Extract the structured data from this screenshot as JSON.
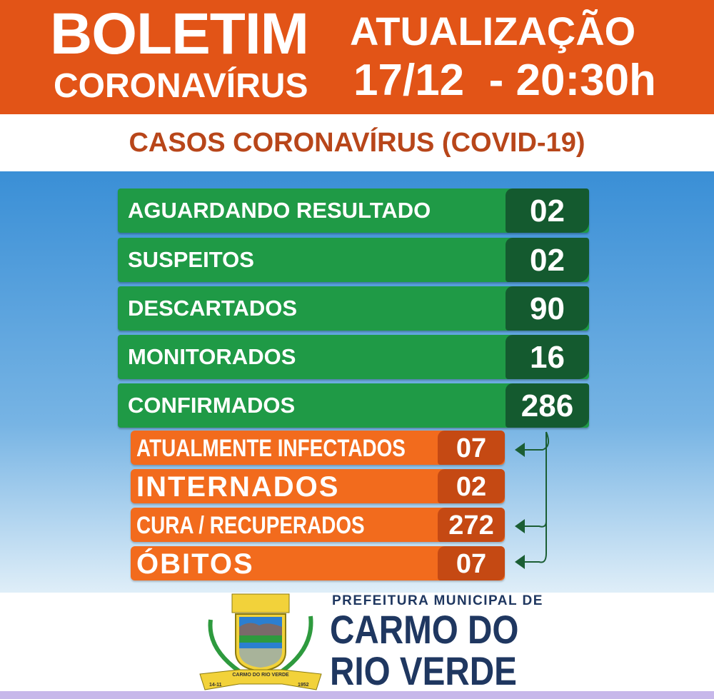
{
  "header": {
    "title_line1": "BOLETIM",
    "title_line2": "CORONAVÍRUS",
    "update_label": "ATUALIZAÇÃO",
    "update_datetime": "17/12  - 20:30h"
  },
  "subtitle": "CASOS CORONAVÍRUS (COVID-19)",
  "main_stats": [
    {
      "label": "AGUARDANDO RESULTADO",
      "value": "02"
    },
    {
      "label": "SUSPEITOS",
      "value": "02"
    },
    {
      "label": "DESCARTADOS",
      "value": "90"
    },
    {
      "label": "MONITORADOS",
      "value": "16"
    },
    {
      "label": "CONFIRMADOS",
      "value": "286"
    }
  ],
  "confirmed_breakdown": [
    {
      "label": "ATUALMENTE INFECTADOS",
      "value": "07"
    },
    {
      "label": "INTERNADOS",
      "value": "02"
    },
    {
      "label": "CURA / RECUPERADOS",
      "value": "272"
    },
    {
      "label": "ÓBITOS",
      "value": "07"
    }
  ],
  "footer": {
    "prefix": "PREFEITURA MUNICIPAL DE",
    "city_line1": "CARMO DO",
    "city_line2": "RIO VERDE",
    "crest_banner": "CARMO DO RIO VERDE",
    "crest_date_left": "14-11",
    "crest_date_right": "1952"
  },
  "colors": {
    "header": "#e25417",
    "green": "#1f9a46",
    "dark_green": "#145a2f",
    "orange": "#f26b1d",
    "dark_orange": "#c54913",
    "navy": "#1f3760"
  }
}
